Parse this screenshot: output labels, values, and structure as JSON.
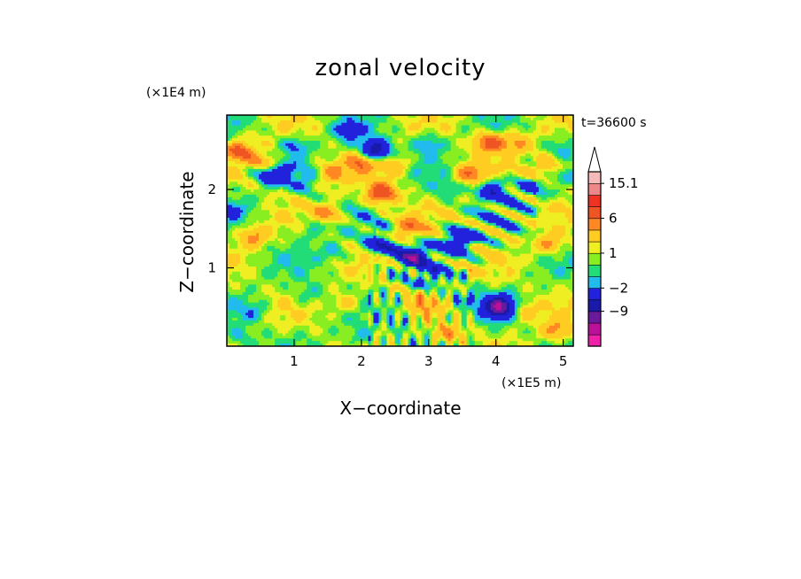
{
  "chart_data": {
    "type": "heatmap",
    "title": "zonal velocity",
    "xlabel": "X−coordinate",
    "ylabel": "Z−coordinate",
    "x_unit": "(×1E5 m)",
    "y_unit": "(×1E4 m)",
    "time_label": "t=36600 s",
    "xlim": [
      0,
      5.15
    ],
    "ylim": [
      0,
      2.95
    ],
    "x_ticks": [
      1,
      2,
      3,
      4,
      5
    ],
    "y_ticks": [
      1,
      2
    ],
    "x_tick_labels": [
      "1",
      "2",
      "3",
      "4",
      "5"
    ],
    "y_tick_labels": [
      "1",
      "2"
    ],
    "colorbar": {
      "levels": [
        -15,
        -12,
        -9,
        -6,
        -2,
        -1,
        0,
        1,
        2,
        4,
        6,
        9,
        12,
        15.1
      ],
      "labels": [
        {
          "level": 15.1,
          "text": "15.1"
        },
        {
          "level": 6,
          "text": "6"
        },
        {
          "level": 1,
          "text": "1"
        },
        {
          "level": -2,
          "text": "−2"
        },
        {
          "level": -9,
          "text": "−9"
        }
      ],
      "colors": [
        "#ee22aa",
        "#bb1199",
        "#6a1a9a",
        "#1a1aaa",
        "#2222dd",
        "#22bbee",
        "#22dd77",
        "#88ee22",
        "#eeee22",
        "#ffcc22",
        "#ff8822",
        "#ee5522",
        "#ee3322",
        "#ee8888",
        "#f5bbbb"
      ]
    },
    "features": [
      {
        "x": 0.2,
        "z": 2.5,
        "u": 6
      },
      {
        "x": 0.6,
        "z": 2.35,
        "u": 4
      },
      {
        "x": 0.1,
        "z": 1.75,
        "u": -2
      },
      {
        "x": 0.7,
        "z": 2.2,
        "u": -6
      },
      {
        "x": 0.4,
        "z": 1.4,
        "u": 4
      },
      {
        "x": 1.2,
        "z": 2.1,
        "u": -2
      },
      {
        "x": 1.0,
        "z": 2.55,
        "u": -3
      },
      {
        "x": 1.25,
        "z": 1.5,
        "u": -2
      },
      {
        "x": 1.5,
        "z": 1.7,
        "u": 4
      },
      {
        "x": 1.55,
        "z": 2.2,
        "u": 4
      },
      {
        "x": 1.8,
        "z": 2.75,
        "u": -3
      },
      {
        "x": 2.2,
        "z": 2.5,
        "u": -9
      },
      {
        "x": 2.0,
        "z": 2.35,
        "u": 5
      },
      {
        "x": 2.3,
        "z": 1.95,
        "u": 8
      },
      {
        "x": 2.5,
        "z": 2.3,
        "u": 3
      },
      {
        "x": 2.7,
        "z": 1.5,
        "u": 5
      },
      {
        "x": 2.75,
        "z": 1.15,
        "u": -9
      },
      {
        "x": 2.3,
        "z": 1.3,
        "u": -6
      },
      {
        "x": 3.0,
        "z": 2.6,
        "u": -3
      },
      {
        "x": 3.3,
        "z": 2.0,
        "u": -2
      },
      {
        "x": 3.9,
        "z": 2.6,
        "u": 7
      },
      {
        "x": 3.6,
        "z": 2.2,
        "u": 5
      },
      {
        "x": 3.95,
        "z": 2.0,
        "u": -6
      },
      {
        "x": 3.45,
        "z": 1.35,
        "u": -7
      },
      {
        "x": 4.5,
        "z": 2.0,
        "u": -3
      },
      {
        "x": 4.75,
        "z": 2.3,
        "u": 4
      },
      {
        "x": 4.3,
        "z": 2.6,
        "u": 4
      },
      {
        "x": 4.8,
        "z": 1.3,
        "u": 4
      },
      {
        "x": 5.0,
        "z": 2.6,
        "u": -2
      },
      {
        "x": 4.05,
        "z": 0.5,
        "u": -12
      },
      {
        "x": 3.5,
        "z": 0.6,
        "u": -2
      },
      {
        "x": 4.4,
        "z": 0.45,
        "u": 3
      },
      {
        "x": 4.9,
        "z": 0.2,
        "u": 4
      },
      {
        "x": 1.2,
        "z": 0.65,
        "u": -2
      },
      {
        "x": 0.4,
        "z": 0.45,
        "u": -2
      },
      {
        "x": 1.8,
        "z": 0.55,
        "u": 3
      },
      {
        "x": 2.6,
        "z": 0.35,
        "u": -2
      },
      {
        "x": 2.9,
        "z": 0.5,
        "u": 3
      },
      {
        "x": 3.3,
        "z": 0.15,
        "u": 4
      },
      {
        "x": 1.6,
        "z": 1.2,
        "u": -2
      },
      {
        "x": 3.05,
        "z": 0.9,
        "u": -3
      },
      {
        "x": 0.2,
        "z": 0.1,
        "u": -2
      },
      {
        "x": 2.0,
        "z": 0.1,
        "u": -2
      }
    ]
  }
}
